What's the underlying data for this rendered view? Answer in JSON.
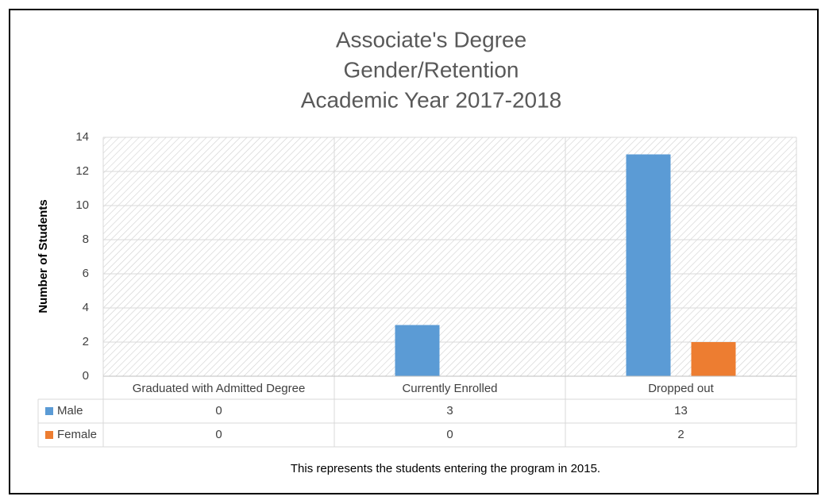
{
  "chart_data": {
    "type": "bar",
    "title": [
      "Associate's Degree",
      "Gender/Retention",
      "Academic Year 2017-2018"
    ],
    "y_label": "Number of Students",
    "categories": [
      "Graduated with Admitted Degree",
      "Currently Enrolled",
      "Dropped out"
    ],
    "series": [
      {
        "name": "Male",
        "color": "#5b9bd5",
        "values": [
          0,
          3,
          13
        ]
      },
      {
        "name": "Female",
        "color": "#ed7d31",
        "values": [
          0,
          0,
          2
        ]
      }
    ],
    "ylim": [
      0,
      14
    ],
    "yticks": [
      0,
      2,
      4,
      6,
      8,
      10,
      12,
      14
    ],
    "grid": true,
    "caption": "This represents the students entering the program in 2015."
  }
}
